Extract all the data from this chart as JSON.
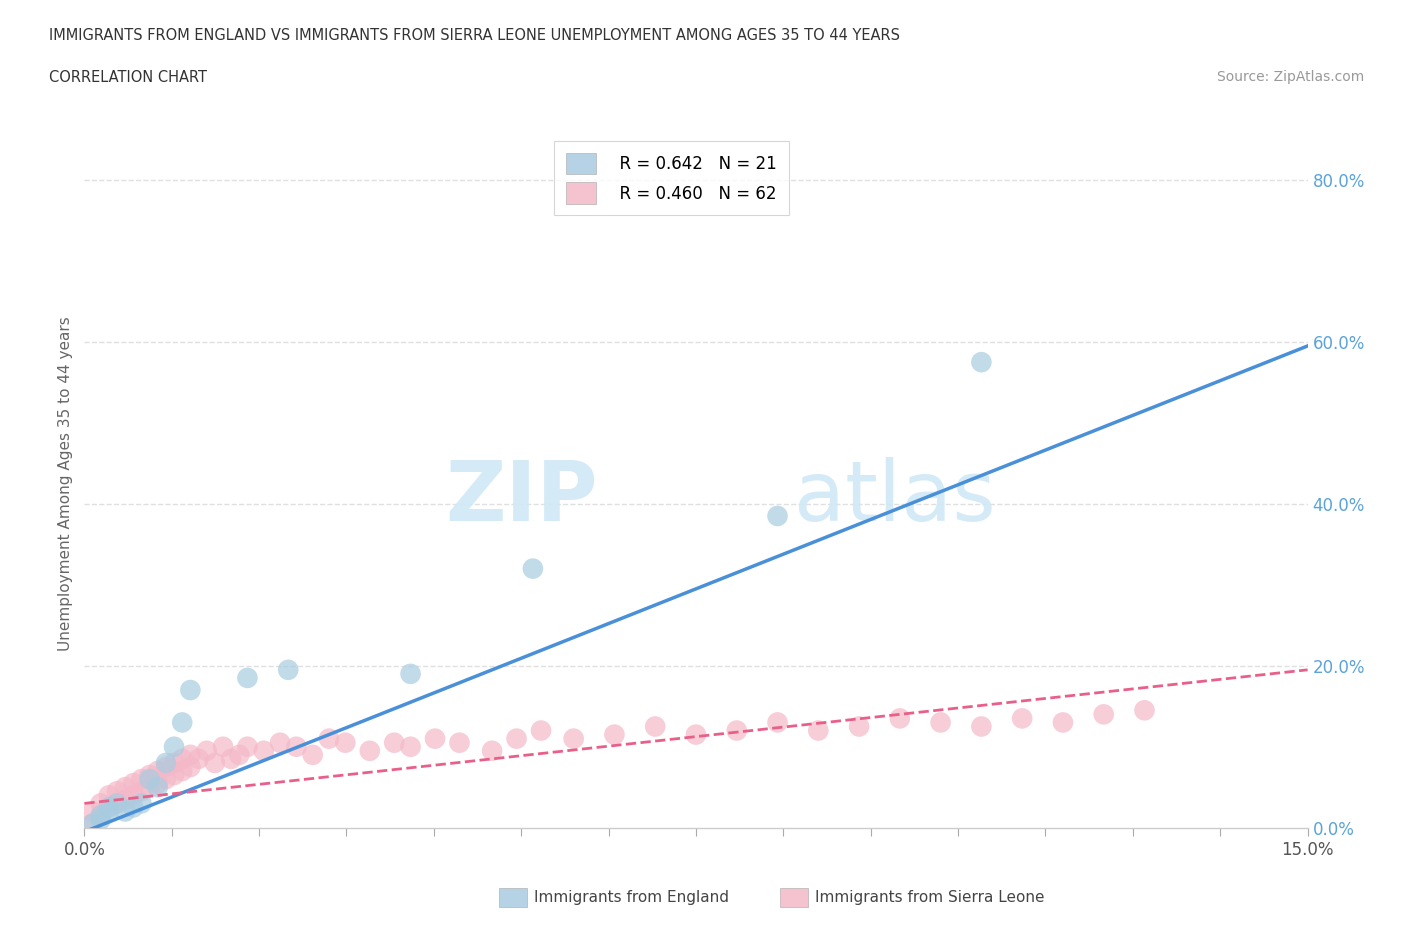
{
  "title_line1": "IMMIGRANTS FROM ENGLAND VS IMMIGRANTS FROM SIERRA LEONE UNEMPLOYMENT AMONG AGES 35 TO 44 YEARS",
  "title_line2": "CORRELATION CHART",
  "source_text": "Source: ZipAtlas.com",
  "ylabel": "Unemployment Among Ages 35 to 44 years",
  "xmin": 0.0,
  "xmax": 0.15,
  "ymin": 0.0,
  "ymax": 0.85,
  "ytick_values": [
    0.0,
    0.2,
    0.4,
    0.6,
    0.8
  ],
  "england_color": "#a8cce0",
  "sierra_leone_color": "#f4b8c8",
  "england_line_color": "#4a90d9",
  "sierra_leone_line_color": "#e8608a",
  "legend_R_england": "R = 0.642",
  "legend_N_england": "N = 21",
  "legend_R_sierra": "R = 0.460",
  "legend_N_sierra": "N = 62",
  "england_scatter_x": [
    0.001,
    0.002,
    0.002,
    0.003,
    0.003,
    0.004,
    0.005,
    0.006,
    0.007,
    0.008,
    0.009,
    0.01,
    0.011,
    0.012,
    0.013,
    0.02,
    0.025,
    0.04,
    0.055,
    0.085,
    0.11
  ],
  "england_scatter_y": [
    0.005,
    0.01,
    0.015,
    0.02,
    0.025,
    0.03,
    0.02,
    0.025,
    0.03,
    0.06,
    0.05,
    0.08,
    0.1,
    0.13,
    0.17,
    0.185,
    0.195,
    0.19,
    0.32,
    0.385,
    0.575
  ],
  "sierra_leone_scatter_x": [
    0.001,
    0.001,
    0.002,
    0.002,
    0.003,
    0.003,
    0.004,
    0.004,
    0.005,
    0.005,
    0.006,
    0.006,
    0.007,
    0.007,
    0.008,
    0.008,
    0.009,
    0.009,
    0.01,
    0.01,
    0.011,
    0.011,
    0.012,
    0.012,
    0.013,
    0.013,
    0.014,
    0.015,
    0.016,
    0.017,
    0.018,
    0.019,
    0.02,
    0.022,
    0.024,
    0.026,
    0.028,
    0.03,
    0.032,
    0.035,
    0.038,
    0.04,
    0.043,
    0.046,
    0.05,
    0.053,
    0.056,
    0.06,
    0.065,
    0.07,
    0.075,
    0.08,
    0.085,
    0.09,
    0.095,
    0.1,
    0.105,
    0.11,
    0.115,
    0.12,
    0.125,
    0.13
  ],
  "sierra_leone_scatter_y": [
    0.005,
    0.02,
    0.015,
    0.03,
    0.025,
    0.04,
    0.03,
    0.045,
    0.035,
    0.05,
    0.04,
    0.055,
    0.045,
    0.06,
    0.05,
    0.065,
    0.055,
    0.07,
    0.06,
    0.075,
    0.065,
    0.08,
    0.07,
    0.085,
    0.075,
    0.09,
    0.085,
    0.095,
    0.08,
    0.1,
    0.085,
    0.09,
    0.1,
    0.095,
    0.105,
    0.1,
    0.09,
    0.11,
    0.105,
    0.095,
    0.105,
    0.1,
    0.11,
    0.105,
    0.095,
    0.11,
    0.12,
    0.11,
    0.115,
    0.125,
    0.115,
    0.12,
    0.13,
    0.12,
    0.125,
    0.135,
    0.13,
    0.125,
    0.135,
    0.13,
    0.14,
    0.145
  ],
  "watermark_text": "ZIPatlas",
  "background_color": "#ffffff",
  "grid_color": "#e0e0e0"
}
